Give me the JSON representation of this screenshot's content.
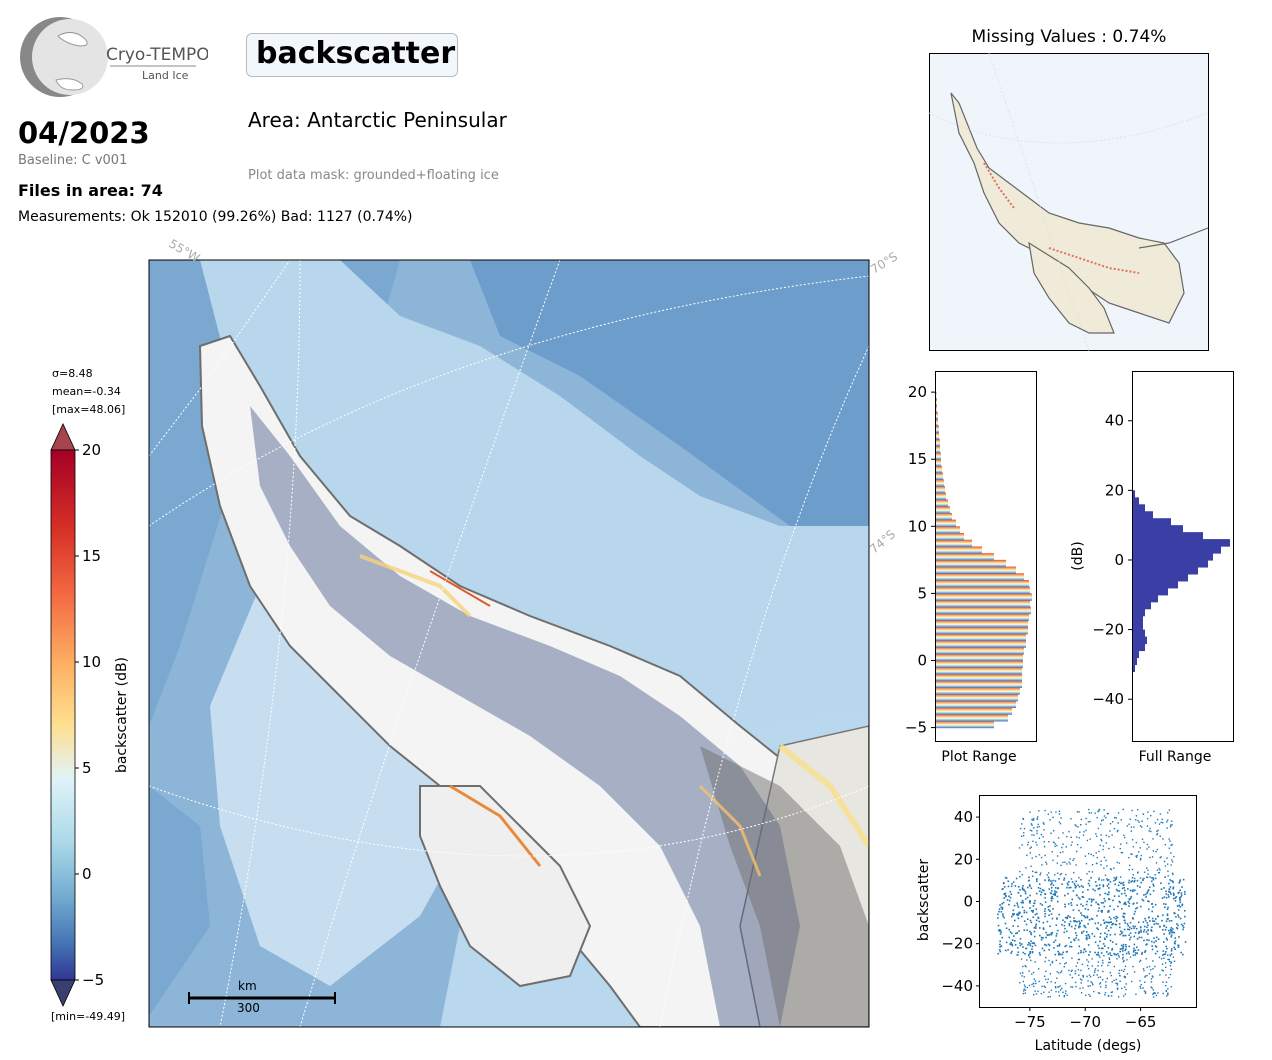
{
  "header": {
    "logo_name": "Cryo-TEMPO",
    "logo_sub": "Land Ice",
    "title": "backscatter",
    "date": "04/2023",
    "baseline": "Baseline: C v001",
    "files": "Files in area: 74",
    "measurements": "Measurements: Ok 152010 (99.26%) Bad: 1127 (0.74%)",
    "area": "Area: Antarctic Peninsular",
    "mask": "Plot data mask: grounded+floating ice"
  },
  "map": {
    "graticule_labels": [
      "55°W",
      "70°S",
      "74°S"
    ],
    "scalebar_unit": "km",
    "scalebar_value": "300"
  },
  "colorbar": {
    "label": "backscatter (dB)",
    "stats": [
      "σ=8.48",
      "mean=-0.34",
      "[max=48.06]"
    ],
    "min_label": "[min=-49.49]",
    "ticks": [
      "20",
      "15",
      "10",
      "5",
      "0",
      "−5"
    ],
    "range": [
      -5,
      20
    ],
    "colormap": "RdYlBu_r"
  },
  "inset": {
    "title": "Missing Values : 0.74%"
  },
  "chart_data": [
    {
      "type": "bar",
      "name": "plot-range-histogram",
      "orientation": "horizontal",
      "xlabel": "Plot Range",
      "ylim": [
        -6,
        21.5
      ],
      "yticks": [
        "20",
        "15",
        "10",
        "5",
        "0",
        "−5"
      ],
      "bin_centers": [
        -4.75,
        -4.25,
        -3.75,
        -3.25,
        -2.75,
        -2.25,
        -1.75,
        -1.25,
        -0.75,
        -0.25,
        0.25,
        0.75,
        1.25,
        1.75,
        2.25,
        2.75,
        3.25,
        3.75,
        4.25,
        4.75,
        5.25,
        5.75,
        6.25,
        6.75,
        7.25,
        7.75,
        8.25,
        8.75,
        9.25,
        9.75,
        10.25,
        10.75,
        11.25,
        11.75,
        12.25,
        12.75,
        13.25,
        13.75,
        14.25,
        14.75,
        15.25,
        15.75,
        16.25,
        16.75,
        17.25,
        17.75,
        18.25,
        18.75,
        19.25,
        19.75
      ],
      "counts": [
        0.58,
        0.72,
        0.76,
        0.8,
        0.82,
        0.84,
        0.86,
        0.86,
        0.86,
        0.87,
        0.87,
        0.88,
        0.9,
        0.9,
        0.92,
        0.92,
        0.93,
        0.95,
        0.94,
        0.96,
        0.94,
        0.93,
        0.88,
        0.8,
        0.7,
        0.58,
        0.46,
        0.36,
        0.28,
        0.24,
        0.2,
        0.16,
        0.14,
        0.12,
        0.1,
        0.09,
        0.08,
        0.07,
        0.06,
        0.05,
        0.05,
        0.04,
        0.04,
        0.03,
        0.03,
        0.02,
        0.02,
        0.01,
        0.01,
        0.005
      ]
    },
    {
      "type": "bar",
      "name": "full-range-histogram",
      "orientation": "horizontal",
      "xlabel": "Full Range",
      "ylabel": "(dB)",
      "ylim": [
        -52,
        54
      ],
      "yticks": [
        "40",
        "20",
        "0",
        "−20",
        "−40"
      ],
      "bin_centers": [
        -31,
        -29,
        -27,
        -25,
        -23,
        -21,
        -19,
        -17,
        -15,
        -13,
        -11,
        -9,
        -7,
        -5,
        -3,
        -1,
        1,
        3,
        5,
        7,
        9,
        11,
        13,
        15,
        17,
        19
      ],
      "counts": [
        0.02,
        0.04,
        0.06,
        0.12,
        0.14,
        0.12,
        0.1,
        0.1,
        0.12,
        0.18,
        0.25,
        0.35,
        0.45,
        0.55,
        0.65,
        0.75,
        0.8,
        0.88,
        0.97,
        0.7,
        0.5,
        0.38,
        0.2,
        0.12,
        0.06,
        0.02
      ]
    },
    {
      "type": "scatter",
      "name": "latitude-scatter",
      "xlabel": "Latitude (degs)",
      "ylabel": "backscatter",
      "xlim": [
        -79.5,
        -60
      ],
      "ylim": [
        -50,
        50
      ],
      "xticks": [
        "−75",
        "−70",
        "−65"
      ],
      "yticks": [
        "40",
        "20",
        "0",
        "−20",
        "−40"
      ],
      "color": "#1f77b4",
      "x_range": [
        -78,
        -61
      ],
      "core_y_range": [
        -25,
        12
      ]
    }
  ]
}
